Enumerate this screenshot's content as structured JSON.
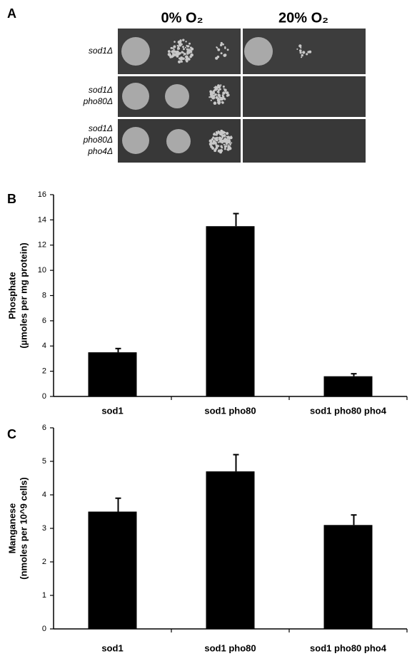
{
  "panel_a": {
    "label": "A",
    "columns": [
      "0% O₂",
      "20% O₂"
    ],
    "rows": [
      [
        "sod1Δ"
      ],
      [
        "sod1Δ",
        "pho80Δ"
      ],
      [
        "sod1Δ",
        "pho80Δ",
        "pho4Δ"
      ]
    ]
  },
  "chart_data": [
    {
      "type": "bar",
      "panel_label": "B",
      "y_label": [
        "Phosphate",
        "(µmoles per mg protein)"
      ],
      "categories": [
        "sod1",
        "sod1 pho80",
        "sod1 pho80 pho4"
      ],
      "series": [
        {
          "color": "#000000",
          "values": [
            3.5,
            13.5,
            1.6
          ],
          "errors": [
            0.3,
            1.0,
            0.2
          ]
        }
      ],
      "ylim": [
        0,
        16
      ],
      "yticks": [
        0,
        2,
        4,
        6,
        8,
        10,
        12,
        14,
        16
      ]
    },
    {
      "type": "bar",
      "panel_label": "C",
      "y_label": [
        "Manganese",
        "(nmoles per 10^9 cells)"
      ],
      "categories": [
        "sod1",
        "sod1 pho80",
        "sod1 pho80 pho4"
      ],
      "series": [
        {
          "color": "#000000",
          "values": [
            3.5,
            4.7,
            3.1
          ],
          "errors": [
            0.4,
            0.5,
            0.3
          ]
        }
      ],
      "ylim": [
        0,
        6
      ],
      "yticks": [
        0,
        1,
        2,
        3,
        4,
        5,
        6
      ]
    }
  ]
}
